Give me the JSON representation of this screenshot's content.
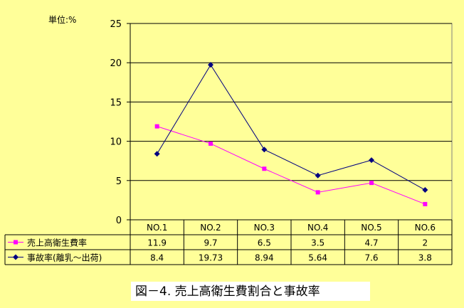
{
  "chart_data": {
    "type": "line",
    "unit_label": "単位:%",
    "categories": [
      "NO.1",
      "NO.2",
      "NO.3",
      "NO.4",
      "NO.5",
      "NO.6"
    ],
    "ylim": [
      0,
      25
    ],
    "yticks": [
      "0",
      "5",
      "10",
      "15",
      "20",
      "25"
    ],
    "grid": true,
    "legend": "table-left",
    "series": [
      {
        "name": "売上高衛生費率",
        "color": "#FF00FF",
        "marker": "square",
        "values": [
          11.9,
          9.7,
          6.5,
          3.5,
          4.7,
          2
        ],
        "labels": [
          "11.9",
          "9.7",
          "6.5",
          "3.5",
          "4.7",
          "2"
        ]
      },
      {
        "name": "事故率(離乳〜出荷)",
        "color": "#000080",
        "marker": "diamond",
        "values": [
          8.4,
          19.73,
          8.94,
          5.64,
          7.6,
          3.8
        ],
        "labels": [
          "8.4",
          "19.73",
          "8.94",
          "5.64",
          "7.6",
          "3.8"
        ]
      }
    ]
  },
  "caption": "図－4. 売上高衛生費割合と事故率"
}
